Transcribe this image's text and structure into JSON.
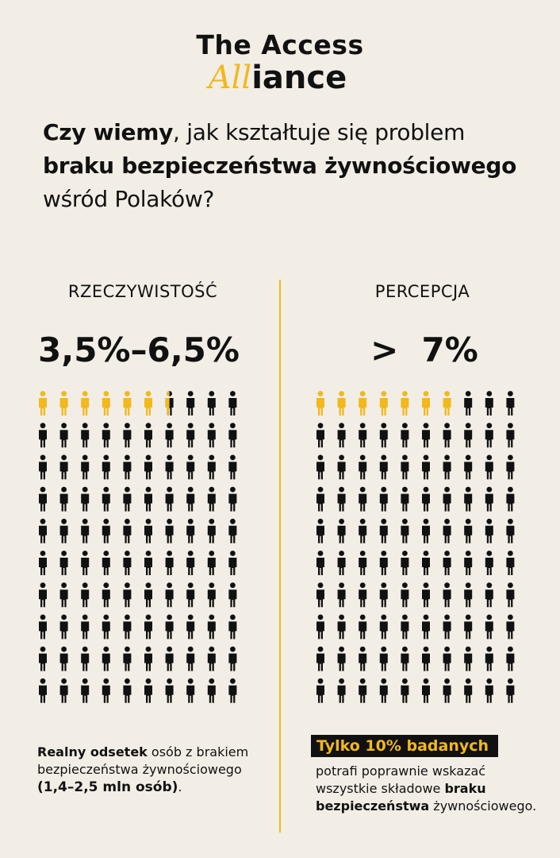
{
  "brand": {
    "line1": "The Access",
    "accent": "All",
    "rest": "iance"
  },
  "headline": {
    "p1_bold": "Czy wiemy",
    "p2": ", jak kształtuje się problem ",
    "p3_bold": "braku bezpieczeństwa żywnościowego",
    "p4": " wśród Polaków?"
  },
  "left": {
    "heading": "RZECZYWISTOŚĆ",
    "value": "3,5%–6,5%",
    "people_total": 100,
    "highlighted": 6.5,
    "note_bold": "Realny odsetek",
    "note_rest": " osób z brakiem bezpieczeństwa żywnościowego",
    "note_bold2": "(1,4–2,5 mln osób)",
    "note_end": "."
  },
  "right": {
    "heading": "PERCEPCJA",
    "value": ">  7%",
    "people_total": 100,
    "highlighted": 7,
    "tag": "Tylko 10% badanych",
    "note_rest": "potrafi poprawnie wskazać wszystkie składowe ",
    "note_bold": "braku bezpieczeństwa",
    "note_end": " żywnościowego."
  },
  "colors": {
    "accent": "#f2b81c",
    "ink": "#111111",
    "background": "#f2eee6"
  },
  "icons": [
    "person-icon"
  ]
}
